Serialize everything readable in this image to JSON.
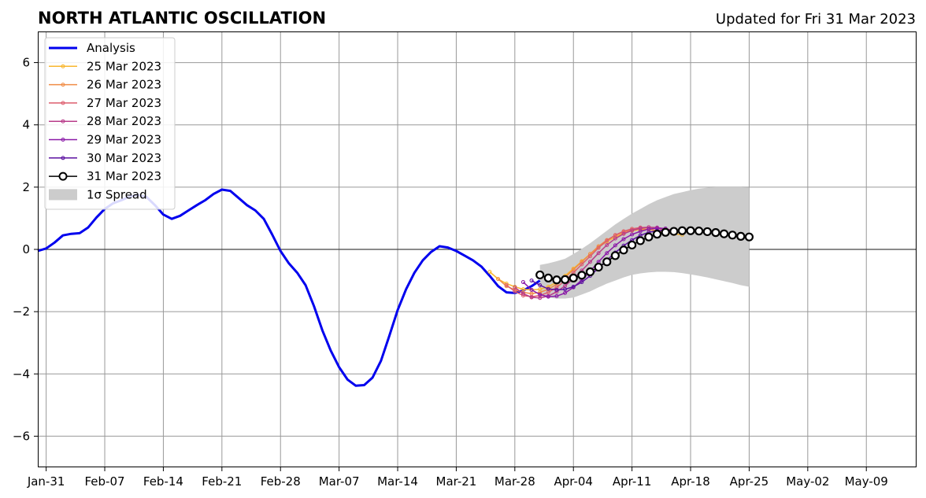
{
  "chart_data": {
    "type": "line",
    "title": "NORTH ATLANTIC OSCILLATION",
    "subtitle": "Updated for Fri 31 Mar 2023",
    "xlabel": "",
    "ylabel": "",
    "ylim": [
      -7,
      7
    ],
    "xlim": [
      "2023-01-30",
      "2023-05-15"
    ],
    "yticks": [
      -6,
      -4,
      -2,
      0,
      2,
      4,
      6
    ],
    "ytick_labels": [
      "−6",
      "−4",
      "−2",
      "0",
      "2",
      "4",
      "6"
    ],
    "xticks": [
      "2023-01-31",
      "2023-02-07",
      "2023-02-14",
      "2023-02-21",
      "2023-02-28",
      "2023-03-07",
      "2023-03-14",
      "2023-03-21",
      "2023-03-28",
      "2023-04-04",
      "2023-04-11",
      "2023-04-18",
      "2023-04-25",
      "2023-05-02",
      "2023-05-09"
    ],
    "xtick_labels": [
      "Jan-31",
      "Feb-07",
      "Feb-14",
      "Feb-21",
      "Feb-28",
      "Mar-07",
      "Mar-14",
      "Mar-21",
      "Mar-28",
      "Apr-04",
      "Apr-11",
      "Apr-18",
      "Apr-25",
      "May-02",
      "May-09"
    ],
    "grid": true,
    "legend_position": "top-left",
    "analysis": {
      "name": "Analysis",
      "color": "#0000ee",
      "start": "2023-01-30",
      "values": [
        -0.05,
        0.03,
        0.22,
        0.45,
        0.5,
        0.52,
        0.7,
        1.02,
        1.3,
        1.48,
        1.58,
        1.7,
        1.75,
        1.68,
        1.42,
        1.12,
        0.98,
        1.08,
        1.25,
        1.42,
        1.58,
        1.78,
        1.92,
        1.88,
        1.65,
        1.42,
        1.25,
        0.98,
        0.48,
        -0.05,
        -0.45,
        -0.75,
        -1.15,
        -1.82,
        -2.6,
        -3.25,
        -3.78,
        -4.18,
        -4.38,
        -4.36,
        -4.12,
        -3.58,
        -2.78,
        -1.95,
        -1.28,
        -0.75,
        -0.35,
        -0.08,
        0.1,
        0.06,
        -0.05,
        -0.2,
        -0.35,
        -0.55,
        -0.85,
        -1.18,
        -1.38,
        -1.4,
        -1.32,
        -1.18,
        -1.0
      ]
    },
    "forecasts": [
      {
        "name": "25 Mar 2023",
        "color": "#f8b62e",
        "start": "2023-03-25",
        "values": [
          -0.72,
          -0.95,
          -1.1,
          -1.2,
          -1.28,
          -1.3,
          -1.28,
          -1.2,
          -1.05,
          -0.85,
          -0.62,
          -0.38,
          -0.15,
          0.07,
          0.25,
          0.4,
          0.52,
          0.6,
          0.64,
          0.64,
          0.6,
          0.55,
          0.5,
          0.47
        ]
      },
      {
        "name": "26 Mar 2023",
        "color": "#f08c45",
        "start": "2023-03-26",
        "values": [
          -0.95,
          -1.18,
          -1.3,
          -1.38,
          -1.42,
          -1.38,
          -1.28,
          -1.12,
          -0.9,
          -0.65,
          -0.4,
          -0.15,
          0.1,
          0.3,
          0.45,
          0.56,
          0.63,
          0.66,
          0.65,
          0.6,
          0.55,
          0.5
        ]
      },
      {
        "name": "27 Mar 2023",
        "color": "#dd5d6d",
        "start": "2023-03-27",
        "values": [
          -1.15,
          -1.35,
          -1.48,
          -1.52,
          -1.48,
          -1.38,
          -1.22,
          -1.0,
          -0.75,
          -0.48,
          -0.22,
          0.05,
          0.28,
          0.46,
          0.58,
          0.66,
          0.7,
          0.71,
          0.68,
          0.62,
          0.56
        ]
      },
      {
        "name": "28 Mar 2023",
        "color": "#b83b8a",
        "start": "2023-03-28",
        "values": [
          -1.22,
          -1.42,
          -1.54,
          -1.56,
          -1.5,
          -1.36,
          -1.17,
          -0.94,
          -0.68,
          -0.4,
          -0.12,
          0.14,
          0.35,
          0.5,
          0.61,
          0.68,
          0.71,
          0.7,
          0.66,
          0.61
        ]
      },
      {
        "name": "29 Mar 2023",
        "color": "#8b1aa8",
        "start": "2023-03-29",
        "values": [
          -1.05,
          -1.3,
          -1.45,
          -1.52,
          -1.5,
          -1.4,
          -1.22,
          -0.98,
          -0.7,
          -0.4,
          -0.12,
          0.13,
          0.33,
          0.48,
          0.58,
          0.65,
          0.68,
          0.67
        ]
      },
      {
        "name": "30 Mar 2023",
        "color": "#5b10a0",
        "start": "2023-03-30",
        "values": [
          -1.0,
          -1.15,
          -1.27,
          -1.3,
          -1.28,
          -1.2,
          -1.05,
          -0.85,
          -0.6,
          -0.35,
          -0.1,
          0.12,
          0.3,
          0.45,
          0.55,
          0.6,
          0.62,
          0.61
        ]
      }
    ],
    "latest": {
      "name": "31 Mar 2023",
      "color": "#000000",
      "start": "2023-03-31",
      "values": [
        -0.82,
        -0.92,
        -0.98,
        -0.97,
        -0.92,
        -0.83,
        -0.72,
        -0.57,
        -0.4,
        -0.2,
        -0.02,
        0.14,
        0.28,
        0.4,
        0.49,
        0.55,
        0.58,
        0.6,
        0.6,
        0.59,
        0.57,
        0.54,
        0.5,
        0.46,
        0.42,
        0.4
      ]
    },
    "spread": {
      "name": "1σ Spread",
      "color": "#cccccc",
      "start": "2023-03-31",
      "upper": [
        -0.5,
        -0.45,
        -0.38,
        -0.3,
        -0.15,
        0.02,
        0.2,
        0.4,
        0.6,
        0.8,
        0.98,
        1.15,
        1.3,
        1.45,
        1.58,
        1.68,
        1.78,
        1.84,
        1.9,
        1.95,
        1.98,
        2.0,
        2.0,
        2.0,
        2.0,
        1.98
      ],
      "lower": [
        -1.5,
        -1.55,
        -1.58,
        -1.58,
        -1.55,
        -1.45,
        -1.35,
        -1.22,
        -1.1,
        -1.0,
        -0.9,
        -0.82,
        -0.77,
        -0.74,
        -0.72,
        -0.72,
        -0.73,
        -0.76,
        -0.8,
        -0.85,
        -0.9,
        -0.96,
        -1.02,
        -1.08,
        -1.15,
        -1.2
      ]
    }
  }
}
